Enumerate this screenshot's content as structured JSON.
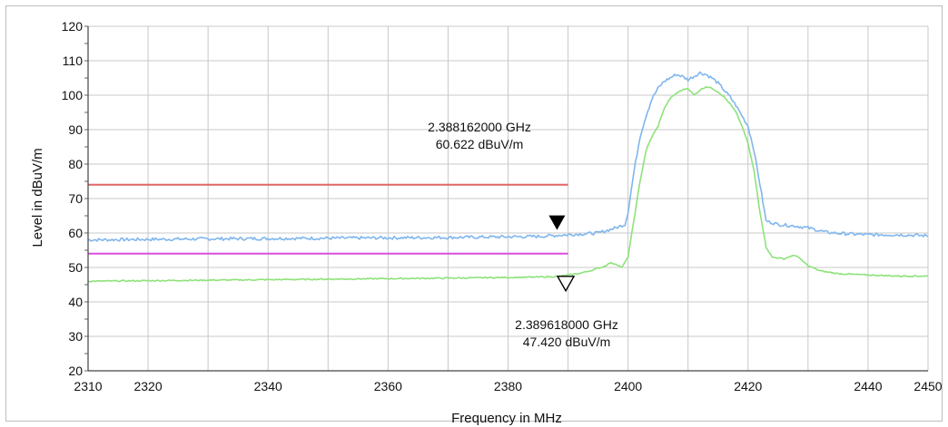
{
  "chart_data": {
    "type": "line",
    "title": "",
    "xlabel": "Frequency in MHz",
    "ylabel": "Level in dBuV/m",
    "xlim": [
      2310,
      2450
    ],
    "ylim": [
      20,
      120
    ],
    "x_ticks": [
      2310,
      2320,
      2340,
      2360,
      2380,
      2400,
      2420,
      2440,
      2450
    ],
    "y_ticks": [
      20,
      30,
      40,
      50,
      60,
      70,
      80,
      90,
      100,
      110,
      120
    ],
    "grid": true,
    "legend": "none",
    "series": [
      {
        "color": "#7fb6ee",
        "x": [
          2310,
          2330,
          2350,
          2370,
          2385,
          2390,
          2395,
          2398,
          2399.5,
          2400,
          2401,
          2402,
          2403,
          2404,
          2405,
          2406,
          2407,
          2408,
          2409,
          2410,
          2411,
          2412,
          2413,
          2414,
          2415,
          2416,
          2417,
          2418,
          2419,
          2420,
          2421,
          2422,
          2423,
          2425,
          2428,
          2430,
          2433,
          2436,
          2440,
          2445,
          2450
        ],
        "y": [
          58.0,
          58.3,
          58.5,
          58.7,
          59.0,
          59.5,
          60.0,
          61.5,
          62.5,
          66,
          78,
          88,
          94,
          99,
          102,
          104,
          105,
          106,
          105.5,
          104.5,
          105.5,
          106.5,
          106,
          105,
          103.5,
          101.5,
          99.5,
          97,
          94,
          91,
          84,
          74,
          63.5,
          62.5,
          62,
          61.5,
          60.2,
          59.8,
          59.5,
          59.5,
          59.2
        ]
      },
      {
        "color": "#8ee27a",
        "x": [
          2310,
          2330,
          2350,
          2370,
          2385,
          2388.5,
          2390,
          2392,
          2394,
          2396,
          2397,
          2398,
          2399,
          2400,
          2401,
          2402,
          2403,
          2404,
          2405,
          2406,
          2407,
          2408,
          2409,
          2410,
          2411,
          2412,
          2413,
          2414,
          2415,
          2416,
          2417,
          2418,
          2419,
          2420,
          2421,
          2422,
          2423,
          2424,
          2425,
          2426,
          2427,
          2428,
          2429,
          2430,
          2432,
          2435,
          2440,
          2445,
          2450
        ],
        "y": [
          46.0,
          46.3,
          46.6,
          46.9,
          47.2,
          47.4,
          47.8,
          48.3,
          49.2,
          50.3,
          51.3,
          51.0,
          50.0,
          53.0,
          64,
          75,
          84,
          88,
          91,
          96,
          99,
          100.5,
          101.5,
          102,
          100,
          101.5,
          102.5,
          102,
          101,
          99.5,
          97.5,
          95,
          91,
          86,
          78,
          66,
          56,
          53,
          52.8,
          52.5,
          53.2,
          53.5,
          52,
          50.5,
          49,
          48.2,
          47.8,
          47.5,
          47.5
        ]
      }
    ],
    "limit_lines": [
      {
        "y": 74,
        "x_start": 2310,
        "x_end": 2390,
        "color": "#e06666"
      },
      {
        "y": 54,
        "x_start": 2310,
        "x_end": 2390,
        "color": "#d94fd9"
      }
    ],
    "markers": [
      {
        "x": 2388.162,
        "y": 60.622,
        "style": "filled",
        "label_line1": "2.388162000 GHz",
        "label_line2": "60.622 dBuV/m"
      },
      {
        "x": 2389.618,
        "y": 47.42,
        "style": "hollow",
        "label_line1": "2.389618000 GHz",
        "label_line2": "47.420 dBuV/m"
      }
    ]
  }
}
